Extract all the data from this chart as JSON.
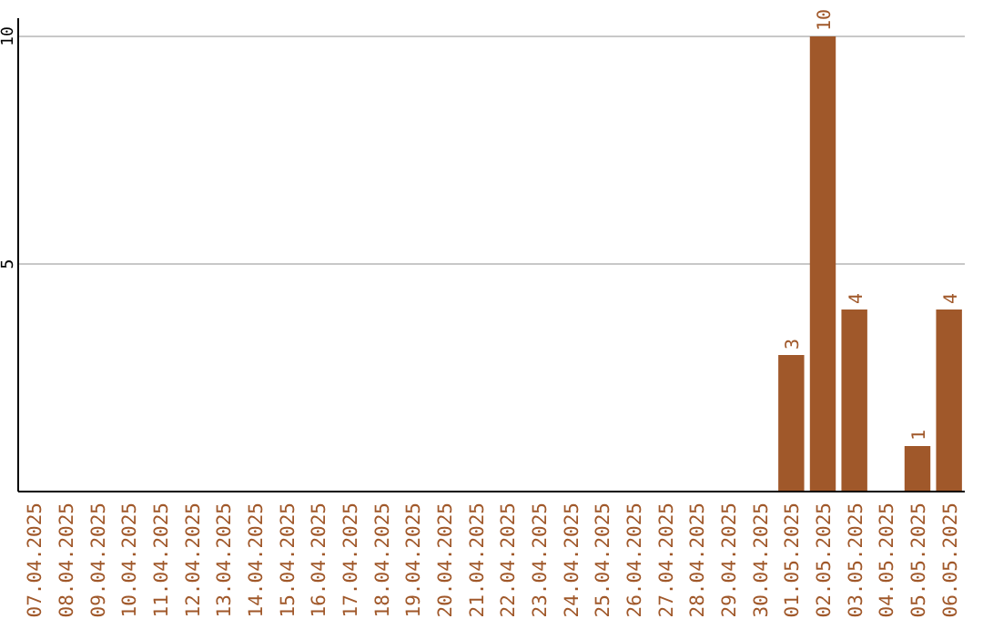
{
  "chart_data": {
    "type": "bar",
    "categories": [
      "07.04.2025",
      "08.04.2025",
      "09.04.2025",
      "10.04.2025",
      "11.04.2025",
      "12.04.2025",
      "13.04.2025",
      "14.04.2025",
      "15.04.2025",
      "16.04.2025",
      "17.04.2025",
      "18.04.2025",
      "19.04.2025",
      "20.04.2025",
      "21.04.2025",
      "22.04.2025",
      "23.04.2025",
      "24.04.2025",
      "25.04.2025",
      "26.04.2025",
      "27.04.2025",
      "28.04.2025",
      "29.04.2025",
      "30.04.2025",
      "01.05.2025",
      "02.05.2025",
      "03.05.2025",
      "04.05.2025",
      "05.05.2025",
      "06.05.2025"
    ],
    "values": [
      0,
      0,
      0,
      0,
      0,
      0,
      0,
      0,
      0,
      0,
      0,
      0,
      0,
      0,
      0,
      0,
      0,
      0,
      0,
      0,
      0,
      0,
      0,
      0,
      3,
      10,
      4,
      0,
      1,
      4
    ],
    "value_labels": [
      null,
      null,
      null,
      null,
      null,
      null,
      null,
      null,
      null,
      null,
      null,
      null,
      null,
      null,
      null,
      null,
      null,
      null,
      null,
      null,
      null,
      null,
      null,
      null,
      "3",
      "10",
      "4",
      null,
      "1",
      "4"
    ],
    "color": "#a0582a",
    "ylim": [
      0,
      10.4
    ],
    "yticks": [
      5,
      10
    ],
    "grid": "y"
  }
}
